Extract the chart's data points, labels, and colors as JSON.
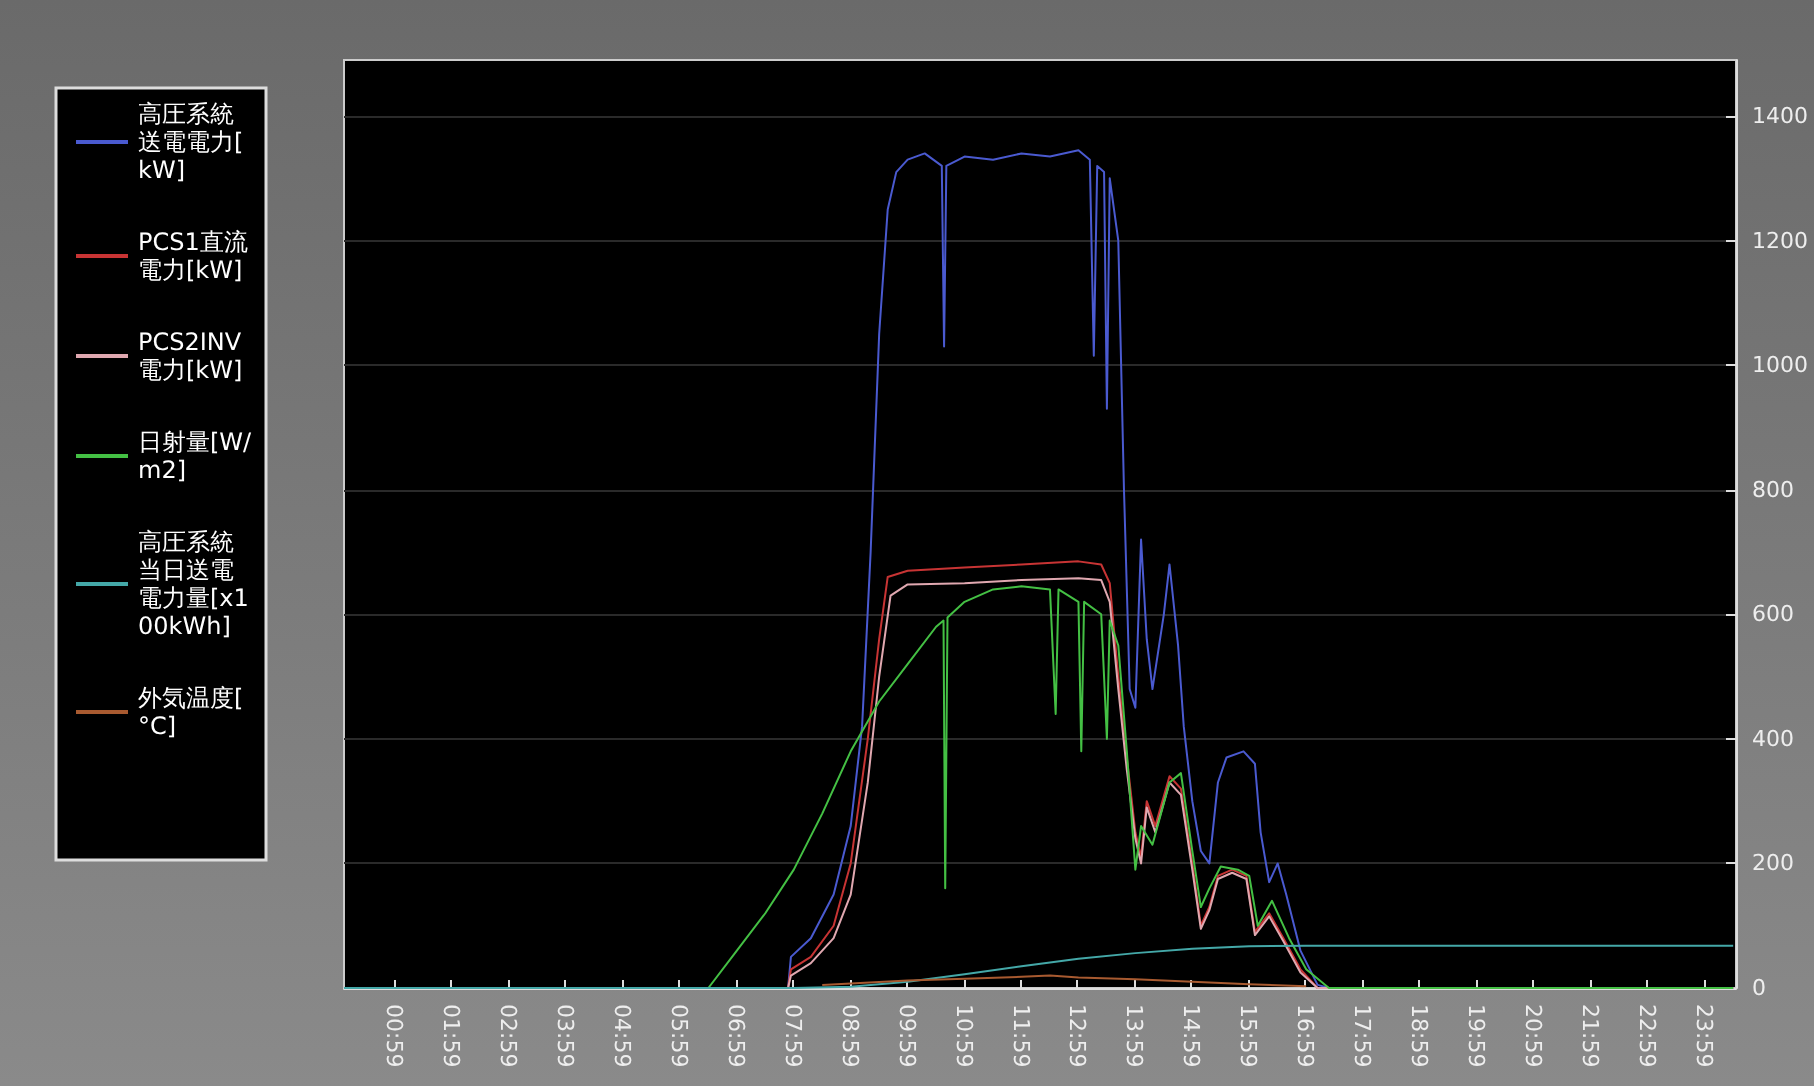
{
  "chart_data": {
    "type": "line",
    "legend": "left",
    "grid": "y",
    "marker": "none",
    "line_style": "solid",
    "xlim": [
      0.1,
      24.55
    ],
    "xticks": [
      {
        "value": 0.983,
        "label": "00:59"
      },
      {
        "value": 1.983,
        "label": "01:59"
      },
      {
        "value": 2.983,
        "label": "02:59"
      },
      {
        "value": 3.983,
        "label": "03:59"
      },
      {
        "value": 4.983,
        "label": "04:59"
      },
      {
        "value": 5.983,
        "label": "05:59"
      },
      {
        "value": 6.983,
        "label": "06:59"
      },
      {
        "value": 7.983,
        "label": "07:59"
      },
      {
        "value": 8.983,
        "label": "08:59"
      },
      {
        "value": 9.983,
        "label": "09:59"
      },
      {
        "value": 10.983,
        "label": "10:59"
      },
      {
        "value": 11.983,
        "label": "11:59"
      },
      {
        "value": 12.983,
        "label": "12:59"
      },
      {
        "value": 13.983,
        "label": "13:59"
      },
      {
        "value": 14.983,
        "label": "14:59"
      },
      {
        "value": 15.983,
        "label": "15:59"
      },
      {
        "value": 16.983,
        "label": "16:59"
      },
      {
        "value": 17.983,
        "label": "17:59"
      },
      {
        "value": 18.983,
        "label": "18:59"
      },
      {
        "value": 19.983,
        "label": "19:59"
      },
      {
        "value": 20.983,
        "label": "20:59"
      },
      {
        "value": 21.983,
        "label": "21:59"
      },
      {
        "value": 22.983,
        "label": "22:59"
      },
      {
        "value": 23.983,
        "label": "23:59"
      }
    ],
    "ylim": [
      0,
      1490
    ],
    "yticks": [
      0,
      200,
      400,
      600,
      800,
      1000,
      1200,
      1400
    ],
    "series": [
      {
        "name": "高圧系統送電電力[kW]",
        "color": "#4a5ad0",
        "x": [
          0.1,
          7.9,
          7.95,
          8.3,
          8.7,
          9.0,
          9.2,
          9.35,
          9.5,
          9.65,
          9.8,
          10.0,
          10.3,
          10.6,
          10.64,
          10.68,
          11.0,
          11.5,
          12.0,
          12.5,
          13.0,
          13.2,
          13.27,
          13.33,
          13.45,
          13.5,
          13.55,
          13.7,
          13.8,
          13.9,
          14.0,
          14.1,
          14.2,
          14.3,
          14.5,
          14.6,
          14.75,
          14.85,
          15.0,
          15.15,
          15.3,
          15.45,
          15.6,
          15.9,
          16.1,
          16.2,
          16.35,
          16.5,
          16.65,
          16.9,
          17.2,
          17.4,
          24.5
        ],
        "values": [
          0,
          0,
          50,
          80,
          150,
          260,
          420,
          700,
          1050,
          1250,
          1310,
          1330,
          1340,
          1320,
          1030,
          1320,
          1335,
          1330,
          1340,
          1335,
          1345,
          1330,
          1015,
          1320,
          1310,
          930,
          1300,
          1200,
          800,
          480,
          450,
          720,
          560,
          480,
          600,
          680,
          550,
          420,
          300,
          220,
          200,
          330,
          370,
          380,
          360,
          250,
          170,
          200,
          150,
          60,
          5,
          0,
          0
        ]
      },
      {
        "name": "PCS1直流電力[kW]",
        "color": "#c83434",
        "x": [
          0.1,
          7.9,
          7.95,
          8.3,
          8.7,
          9.0,
          9.3,
          9.5,
          9.65,
          10.0,
          11.0,
          12.0,
          13.0,
          13.4,
          13.55,
          13.7,
          13.85,
          14.0,
          14.1,
          14.2,
          14.35,
          14.6,
          14.8,
          15.0,
          15.15,
          15.3,
          15.45,
          15.7,
          15.95,
          16.1,
          16.35,
          16.6,
          16.9,
          17.2,
          24.5
        ],
        "values": [
          0,
          0,
          30,
          50,
          100,
          200,
          400,
          560,
          660,
          670,
          675,
          680,
          685,
          680,
          650,
          500,
          370,
          250,
          210,
          300,
          260,
          340,
          320,
          200,
          100,
          130,
          180,
          190,
          180,
          90,
          120,
          80,
          30,
          0,
          0
        ]
      },
      {
        "name": "PCS2INV電力[kW]",
        "color": "#e0a8b0",
        "x": [
          0.1,
          7.9,
          7.95,
          8.3,
          8.7,
          9.0,
          9.3,
          9.5,
          9.7,
          10.0,
          11.0,
          12.0,
          13.0,
          13.4,
          13.55,
          13.7,
          13.85,
          14.0,
          14.1,
          14.2,
          14.35,
          14.6,
          14.8,
          15.0,
          15.15,
          15.3,
          15.45,
          15.7,
          15.95,
          16.1,
          16.35,
          16.6,
          16.9,
          17.2,
          24.5
        ],
        "values": [
          0,
          0,
          20,
          40,
          80,
          150,
          330,
          500,
          630,
          648,
          650,
          655,
          658,
          655,
          620,
          480,
          350,
          240,
          200,
          290,
          250,
          330,
          310,
          190,
          95,
          125,
          175,
          185,
          175,
          85,
          115,
          75,
          25,
          0,
          0
        ]
      },
      {
        "name": "日射量[W/m2]",
        "color": "#44c044",
        "x": [
          0.1,
          6.5,
          7.0,
          7.5,
          8.0,
          8.5,
          9.0,
          9.5,
          10.0,
          10.5,
          10.63,
          10.66,
          10.7,
          11.0,
          11.5,
          12.0,
          12.5,
          12.6,
          12.65,
          13.0,
          13.05,
          13.1,
          13.4,
          13.5,
          13.55,
          13.7,
          13.85,
          14.0,
          14.1,
          14.3,
          14.6,
          14.8,
          15.0,
          15.15,
          15.3,
          15.5,
          15.8,
          16.0,
          16.15,
          16.4,
          16.7,
          17.0,
          17.4,
          24.5
        ],
        "values": [
          0,
          0,
          60,
          120,
          190,
          280,
          380,
          460,
          520,
          580,
          590,
          160,
          595,
          620,
          640,
          645,
          640,
          440,
          640,
          620,
          380,
          620,
          600,
          400,
          590,
          550,
          380,
          190,
          260,
          230,
          330,
          345,
          220,
          130,
          160,
          195,
          190,
          180,
          100,
          140,
          80,
          30,
          0,
          0
        ]
      },
      {
        "name": "高圧系統当日送電電力量[x100kWh]",
        "color": "#44a8a8",
        "x": [
          0.1,
          8.0,
          9.0,
          10.0,
          11.0,
          12.0,
          13.0,
          14.0,
          15.0,
          16.0,
          17.0,
          24.5
        ],
        "values": [
          0,
          0,
          2,
          10,
          22,
          35,
          47,
          56,
          63,
          67,
          68,
          68
        ]
      },
      {
        "name": "外気温度[°C]",
        "color": "#a85a30",
        "x": [
          8.5,
          10.0,
          11.0,
          12.0,
          12.5,
          13.0,
          14.0,
          15.0,
          16.0,
          17.0
        ],
        "values": [
          5,
          12,
          15,
          18,
          20,
          17,
          14,
          10,
          6,
          3
        ]
      }
    ]
  }
}
